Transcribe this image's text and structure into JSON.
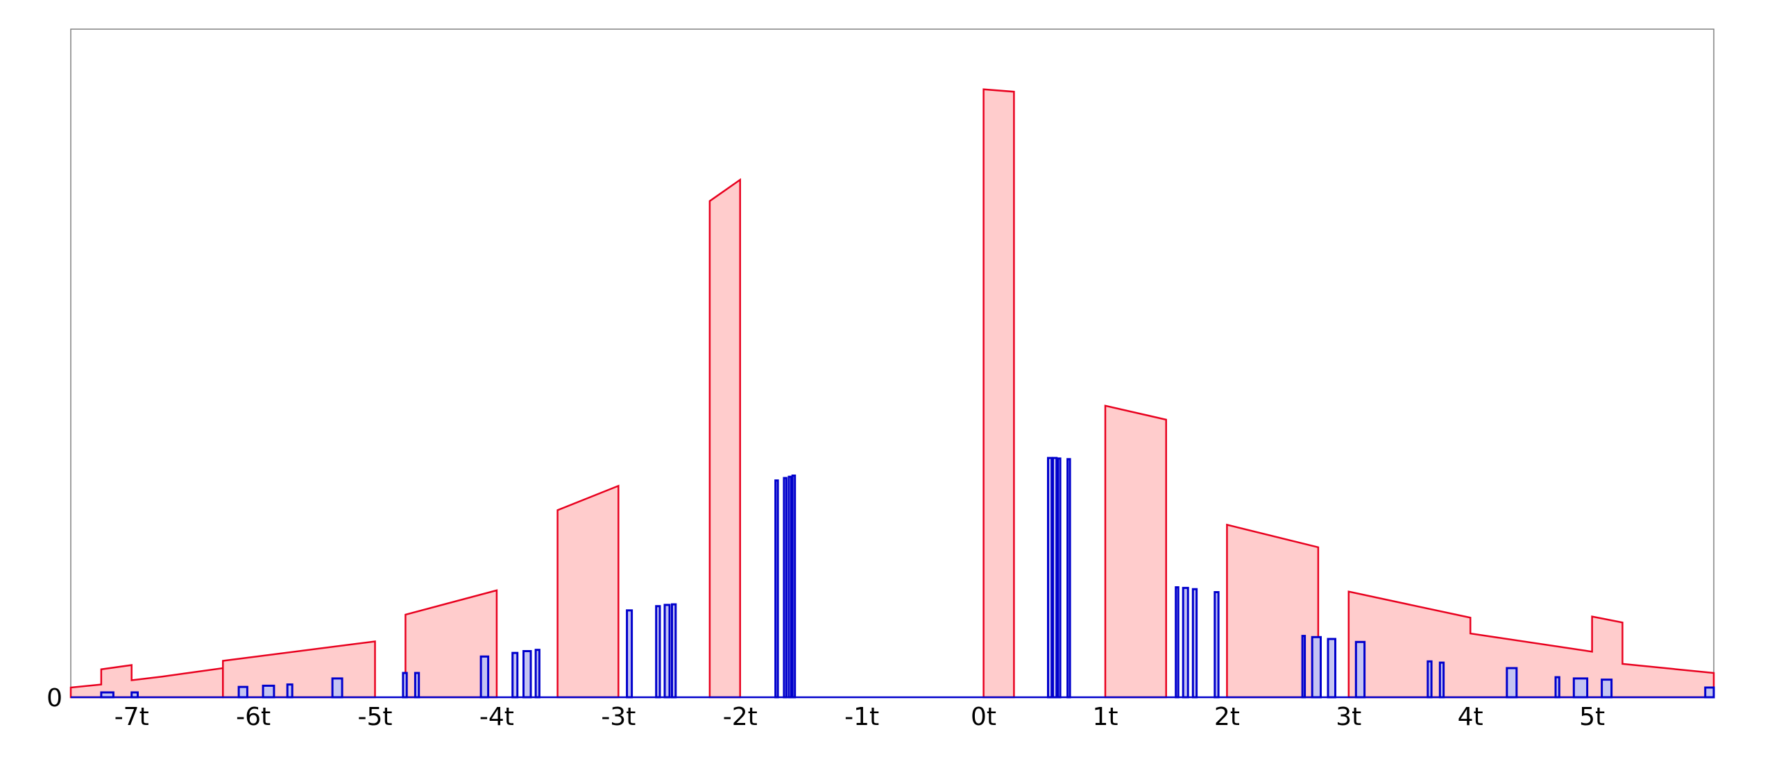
{
  "chart_data": {
    "type": "area",
    "title": "",
    "xlabel": "",
    "ylabel": "",
    "xlim": [
      -7.5,
      6
    ],
    "ylim": [
      0,
      1.1
    ],
    "grid": false,
    "x_ticks": [
      {
        "value": -7,
        "label": "-7t"
      },
      {
        "value": -6,
        "label": "-6t"
      },
      {
        "value": -5,
        "label": "-5t"
      },
      {
        "value": -4,
        "label": "-4t"
      },
      {
        "value": -3,
        "label": "-3t"
      },
      {
        "value": -2,
        "label": "-2t"
      },
      {
        "value": -1,
        "label": "-1t"
      },
      {
        "value": 0,
        "label": "0t"
      },
      {
        "value": 1,
        "label": "1t"
      },
      {
        "value": 2,
        "label": "2t"
      },
      {
        "value": 3,
        "label": "3t"
      },
      {
        "value": 4,
        "label": "4t"
      },
      {
        "value": 5,
        "label": "5t"
      }
    ],
    "y_ticks": [
      {
        "value": 0,
        "label": "0"
      }
    ],
    "series": [
      {
        "color": "#e8001e",
        "fill": "#ffcccc",
        "shapes": [
          [
            [
              -7.5,
              0
            ],
            [
              -7.5,
              0.016
            ],
            [
              -7.25,
              0.021
            ],
            [
              -7.25,
              0.046
            ],
            [
              -7.0,
              0.053
            ],
            [
              -7.0,
              0.028
            ],
            [
              -6.75,
              0.034
            ],
            [
              -6.5,
              0.041
            ],
            [
              -6.25,
              0.048
            ],
            [
              -6.25,
              0
            ],
            [
              -7.5,
              0
            ]
          ],
          [
            [
              -6.25,
              0
            ],
            [
              -6.25,
              0.06
            ],
            [
              -5.0,
              0.092
            ],
            [
              -5.0,
              0
            ]
          ],
          [
            [
              -4.75,
              0
            ],
            [
              -4.75,
              0.136
            ],
            [
              -4.0,
              0.176
            ],
            [
              -4.0,
              0
            ]
          ],
          [
            [
              -3.5,
              0
            ],
            [
              -3.5,
              0.308
            ],
            [
              -3.0,
              0.348
            ],
            [
              -3.0,
              0
            ]
          ],
          [
            [
              -2.25,
              0
            ],
            [
              -2.25,
              0.817
            ],
            [
              -2.0,
              0.852
            ],
            [
              -2.0,
              0
            ]
          ],
          [
            [
              0.0,
              0
            ],
            [
              0.0,
              1.001
            ],
            [
              0.25,
              0.997
            ],
            [
              0.25,
              0
            ]
          ],
          [
            [
              1.0,
              0
            ],
            [
              1.0,
              0.48
            ],
            [
              1.5,
              0.457
            ],
            [
              1.5,
              0
            ]
          ],
          [
            [
              2.0,
              0
            ],
            [
              2.0,
              0.284
            ],
            [
              2.75,
              0.247
            ],
            [
              2.75,
              0
            ]
          ],
          [
            [
              3.0,
              0
            ],
            [
              3.0,
              0.174
            ],
            [
              4.0,
              0.131
            ],
            [
              4.0,
              0.105
            ],
            [
              5.0,
              0.075
            ],
            [
              5.0,
              0.133
            ],
            [
              5.25,
              0.123
            ],
            [
              5.25,
              0.055
            ],
            [
              6.0,
              0.04
            ],
            [
              6.0,
              0
            ]
          ]
        ]
      },
      {
        "color": "#0000cc",
        "fill": "#c4c4f2",
        "bars": [
          [
            -7.25,
            -7.15,
            0.008
          ],
          [
            -7.0,
            -6.95,
            0.008
          ],
          [
            -6.12,
            -6.05,
            0.017
          ],
          [
            -5.92,
            -5.83,
            0.019
          ],
          [
            -5.72,
            -5.68,
            0.021
          ],
          [
            -5.35,
            -5.27,
            0.031
          ],
          [
            -4.77,
            -4.74,
            0.04
          ],
          [
            -4.67,
            -4.64,
            0.04
          ],
          [
            -4.13,
            -4.07,
            0.067
          ],
          [
            -3.87,
            -3.83,
            0.073
          ],
          [
            -3.78,
            -3.72,
            0.076
          ],
          [
            -3.68,
            -3.65,
            0.078
          ],
          [
            -2.93,
            -2.89,
            0.143
          ],
          [
            -2.69,
            -2.66,
            0.15
          ],
          [
            -2.62,
            -2.58,
            0.152
          ],
          [
            -2.56,
            -2.53,
            0.153
          ],
          [
            -1.71,
            -1.69,
            0.357
          ],
          [
            -1.64,
            -1.62,
            0.361
          ],
          [
            -1.6,
            -1.58,
            0.363
          ],
          [
            -1.57,
            -1.55,
            0.365
          ],
          [
            0.53,
            0.56,
            0.394
          ],
          [
            0.57,
            0.6,
            0.394
          ],
          [
            0.61,
            0.63,
            0.393
          ],
          [
            0.69,
            0.71,
            0.392
          ],
          [
            1.58,
            1.6,
            0.181
          ],
          [
            1.64,
            1.68,
            0.18
          ],
          [
            1.72,
            1.75,
            0.178
          ],
          [
            1.9,
            1.93,
            0.173
          ],
          [
            2.62,
            2.64,
            0.101
          ],
          [
            2.7,
            2.77,
            0.099
          ],
          [
            2.83,
            2.89,
            0.096
          ],
          [
            3.06,
            3.13,
            0.091
          ],
          [
            3.65,
            3.68,
            0.059
          ],
          [
            3.75,
            3.78,
            0.057
          ],
          [
            4.3,
            4.38,
            0.048
          ],
          [
            4.7,
            4.73,
            0.033
          ],
          [
            4.85,
            4.96,
            0.031
          ],
          [
            5.08,
            5.16,
            0.029
          ],
          [
            5.93,
            6.0,
            0.016
          ]
        ]
      }
    ]
  }
}
